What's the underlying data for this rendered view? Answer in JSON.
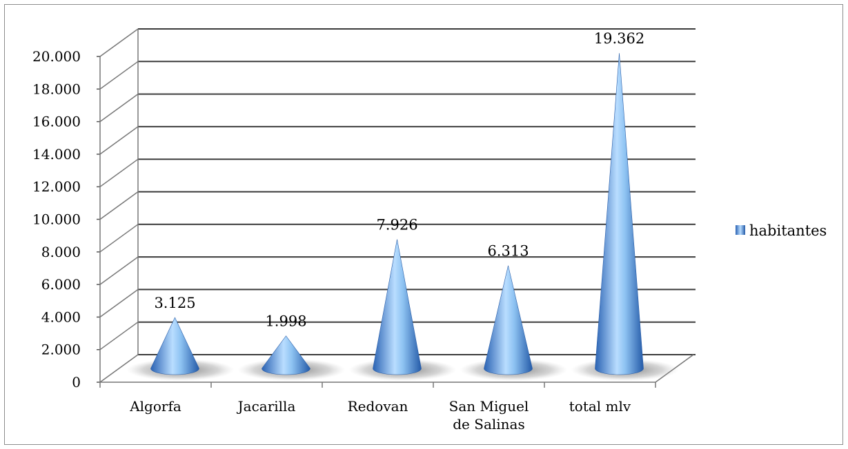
{
  "chart_data": {
    "type": "bar",
    "shape": "cone-3d",
    "categories": [
      [
        "Algorfa"
      ],
      [
        "Jacarilla"
      ],
      [
        "Redovan"
      ],
      [
        "San Miguel",
        "de Salinas"
      ],
      [
        "total mlv"
      ]
    ],
    "series": [
      {
        "name": "habitantes",
        "values": [
          3125,
          1998,
          7926,
          6313,
          19362
        ]
      }
    ],
    "data_labels": [
      "3.125",
      "1.998",
      "7.926",
      "6.313",
      "19.362"
    ],
    "ylim": [
      0,
      20000
    ],
    "ytick_values": [
      0,
      2000,
      4000,
      6000,
      8000,
      10000,
      12000,
      14000,
      16000,
      18000,
      20000
    ],
    "ytick_labels": [
      "0",
      "2.000",
      "4.000",
      "6.000",
      "8.000",
      "10.000",
      "12.000",
      "14.000",
      "16.000",
      "18.000",
      "20.000"
    ],
    "grid": true,
    "legend_position": "right",
    "colors": {
      "cone_dark": "#2f6fc2",
      "cone_light": "#bfe0ff",
      "gridline": "#3a3a3a",
      "floor_shadow": "#7a7a7a"
    }
  }
}
